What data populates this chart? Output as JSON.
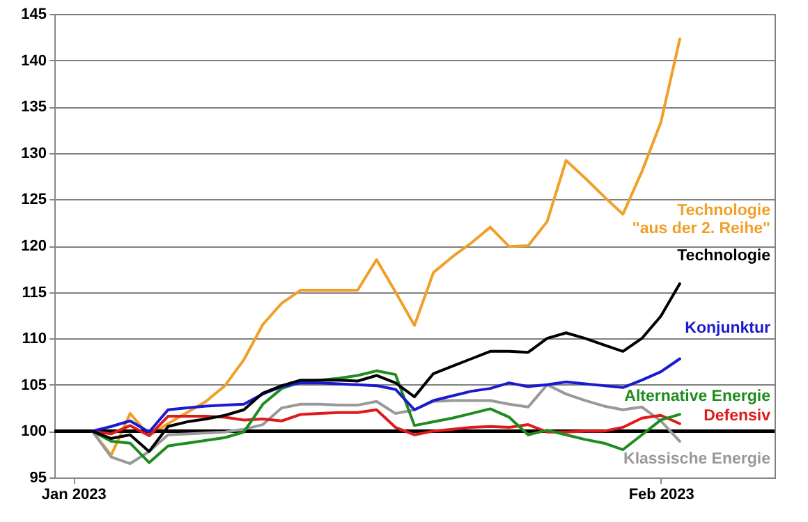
{
  "chart_data": {
    "type": "line",
    "x": [
      "2023-01-02",
      "2023-01-03",
      "2023-01-04",
      "2023-01-05",
      "2023-01-06",
      "2023-01-07",
      "2023-01-08",
      "2023-01-09",
      "2023-01-10",
      "2023-01-11",
      "2023-01-12",
      "2023-01-13",
      "2023-01-14",
      "2023-01-15",
      "2023-01-16",
      "2023-01-17",
      "2023-01-18",
      "2023-01-19",
      "2023-01-20",
      "2023-01-21",
      "2023-01-22",
      "2023-01-23",
      "2023-01-24",
      "2023-01-25",
      "2023-01-26",
      "2023-01-27",
      "2023-01-28",
      "2023-01-29",
      "2023-01-30",
      "2023-01-31",
      "2023-02-01",
      "2023-02-02"
    ],
    "series": [
      {
        "name": "Technologie\n\"aus der 2. Reihe\"",
        "color": "#f0a028",
        "values": [
          100,
          97.4,
          101.9,
          99.5,
          100.8,
          102,
          103.2,
          104.9,
          107.7,
          111.5,
          113.8,
          115.2,
          115.2,
          115.2,
          115.2,
          118.5,
          115,
          111.4,
          117.1,
          118.8,
          120.3,
          122,
          119.9,
          120,
          122.6,
          129.2,
          127.3,
          125.3,
          123.4,
          128,
          133.3,
          142.3
        ]
      },
      {
        "name": "Technologie",
        "color": "#000000",
        "values": [
          100,
          99.2,
          99.6,
          97.8,
          100.5,
          101,
          101.3,
          101.7,
          102.3,
          104.1,
          104.9,
          105.5,
          105.5,
          105.5,
          105.4,
          106,
          105.2,
          103.7,
          106.2,
          107,
          107.8,
          108.6,
          108.6,
          108.5,
          110,
          110.6,
          110,
          109.3,
          108.6,
          110,
          112.4,
          115.9
        ]
      },
      {
        "name": "Konjunktur",
        "color": "#1a1ad0",
        "values": [
          100,
          100.5,
          101.1,
          99.9,
          102.3,
          102.5,
          102.7,
          102.8,
          102.9,
          104,
          104.8,
          105.2,
          105.2,
          105.1,
          105,
          104.9,
          104.5,
          102.3,
          103.3,
          103.8,
          104.3,
          104.6,
          105.2,
          104.8,
          105,
          105.3,
          105.1,
          104.9,
          104.7,
          105.5,
          106.4,
          107.8
        ]
      },
      {
        "name": "Alternative Energie",
        "color": "#1e8c1e",
        "values": [
          100,
          98.9,
          98.7,
          96.6,
          98.4,
          98.7,
          99,
          99.3,
          99.9,
          102.9,
          104.6,
          105.3,
          105.5,
          105.7,
          106,
          106.5,
          106.1,
          100.6,
          101,
          101.4,
          101.9,
          102.4,
          101.5,
          99.6,
          100.1,
          99.6,
          99.1,
          98.7,
          98,
          99.6,
          101.2,
          101.8
        ]
      },
      {
        "name": "Defensiv",
        "color": "#e01a1a",
        "values": [
          100,
          99.7,
          100.6,
          99.5,
          101.6,
          101.6,
          101.6,
          101.5,
          101.2,
          101.3,
          101.1,
          101.8,
          101.9,
          102,
          102,
          102.3,
          100.4,
          99.6,
          100,
          100.2,
          100.4,
          100.5,
          100.4,
          100.7,
          99.9,
          99.9,
          100,
          100,
          100.4,
          101.4,
          101.7,
          100.8
        ]
      },
      {
        "name": "Klassische Energie",
        "color": "#999999",
        "values": [
          100,
          97.2,
          96.5,
          97.8,
          99.6,
          99.7,
          99.8,
          99.9,
          100.2,
          100.7,
          102.5,
          102.9,
          102.9,
          102.8,
          102.8,
          103.2,
          101.9,
          102.3,
          103.2,
          103.3,
          103.3,
          103.3,
          102.9,
          102.6,
          105,
          104,
          103.3,
          102.7,
          102.3,
          102.6,
          101.1,
          98.9
        ]
      }
    ],
    "xlim": [
      "2022-12-31",
      "2023-02-07"
    ],
    "xticks": [
      {
        "value": "2023-01-01",
        "label": "Jan 2023"
      },
      {
        "value": "2023-02-01",
        "label": "Feb 2023"
      }
    ],
    "ylim": [
      95,
      145
    ],
    "yticks": [
      95,
      100,
      105,
      110,
      115,
      120,
      125,
      130,
      135,
      140,
      145
    ],
    "ref_lines": [
      {
        "axis": "y",
        "value": 100,
        "color": "#000000"
      }
    ],
    "grid": "y"
  }
}
